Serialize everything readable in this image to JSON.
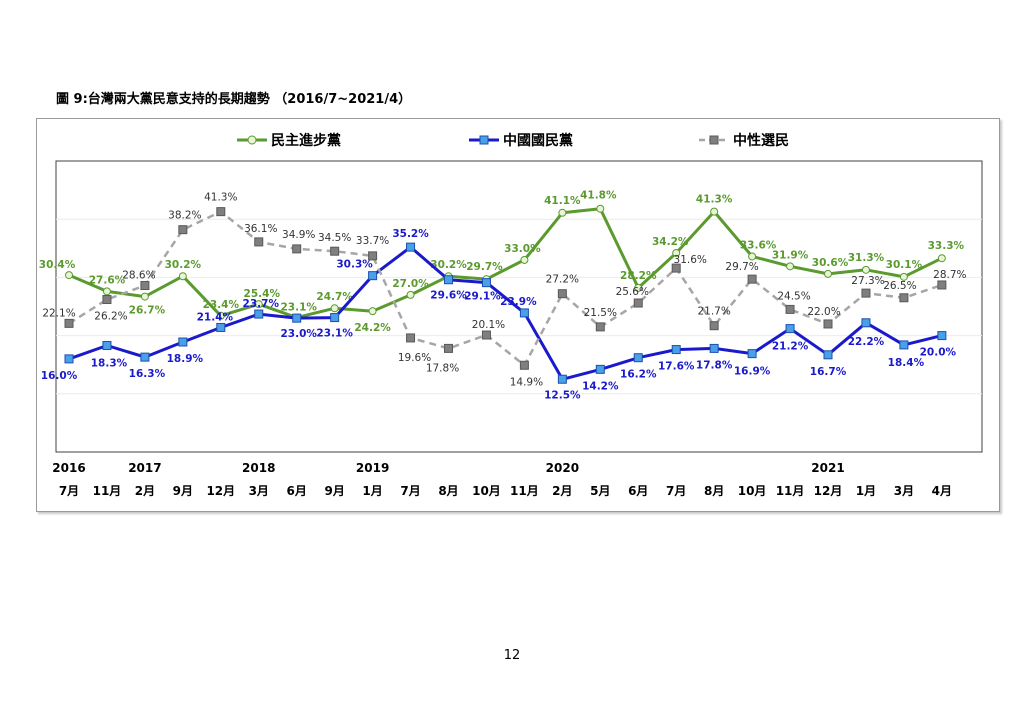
{
  "figure_title": "圖 9:台灣兩大黨民意支持的長期趨勢 （2016/7~2021/4）",
  "page_number": "12",
  "chart_data": {
    "type": "line",
    "title": "",
    "xlabel": "",
    "ylabel": "",
    "grid": true,
    "legend_position": "top",
    "ylim": [
      0,
      50
    ],
    "year_labels": [
      "2016",
      "2017",
      "2018",
      "2019",
      "2020",
      "2021"
    ],
    "year_label_category_index": [
      0,
      2,
      5,
      8,
      13,
      20
    ],
    "categories": [
      "7月",
      "11月",
      "2月",
      "9月",
      "12月",
      "3月",
      "6月",
      "9月",
      "1月",
      "7月",
      "8月",
      "10月",
      "11月",
      "2月",
      "5月",
      "6月",
      "7月",
      "8月",
      "10月",
      "11月",
      "12月",
      "1月",
      "3月",
      "4月"
    ],
    "series": [
      {
        "name": "民主進步黨",
        "color": "#5b9a2e",
        "marker": "circle",
        "marker_fill": "#e8f5d8",
        "dashed": false,
        "label_color": "#5b9a2e",
        "values": [
          30.4,
          27.6,
          26.7,
          30.2,
          23.4,
          25.4,
          23.1,
          24.7,
          24.2,
          27.0,
          30.2,
          29.7,
          33.0,
          41.1,
          41.8,
          28.2,
          34.2,
          41.3,
          33.6,
          31.9,
          30.6,
          31.3,
          30.1,
          33.3
        ],
        "labels": [
          "30.4%",
          "27.6%",
          "26.7%",
          "30.2%",
          "23.4%",
          "25.4%",
          "23.1%",
          "24.7%",
          "24.2%",
          "27.0%",
          "30.2%",
          "29.7%",
          "33.0%",
          "41.1%",
          "41.8%",
          "28.2%",
          "34.2%",
          "41.3%",
          "33.6%",
          "31.9%",
          "30.6%",
          "31.3%",
          "30.1%",
          "33.3%"
        ]
      },
      {
        "name": "中國國民黨",
        "color": "#1a1acc",
        "marker": "square",
        "marker_fill": "#4aa0e8",
        "dashed": false,
        "label_color": "#1a1acc",
        "values": [
          16.0,
          18.3,
          16.3,
          18.9,
          21.4,
          23.7,
          23.0,
          23.1,
          30.3,
          35.2,
          29.6,
          29.1,
          23.9,
          12.5,
          14.2,
          16.2,
          17.6,
          17.8,
          16.9,
          21.2,
          16.7,
          22.2,
          18.4,
          20.0
        ],
        "labels": [
          "16.0%",
          "18.3%",
          "16.3%",
          "18.9%",
          "21.4%",
          "23.7%",
          "23.0%",
          "23.1%",
          "30.3%",
          "35.2%",
          "29.6%",
          "29.1%",
          "23.9%",
          "12.5%",
          "14.2%",
          "16.2%",
          "17.6%",
          "17.8%",
          "16.9%",
          "21.2%",
          "16.7%",
          "22.2%",
          "18.4%",
          "20.0%"
        ]
      },
      {
        "name": "中性選民",
        "color": "#a6a6a6",
        "marker": "square",
        "marker_fill": "#7f7f7f",
        "dashed": true,
        "label_color": "#333333",
        "values": [
          22.1,
          26.2,
          28.6,
          38.2,
          41.3,
          36.1,
          34.9,
          34.5,
          33.7,
          19.6,
          17.8,
          20.1,
          14.9,
          27.2,
          21.5,
          25.6,
          31.6,
          21.7,
          29.7,
          24.5,
          22.0,
          27.3,
          26.5,
          28.7
        ],
        "labels": [
          "22.1%",
          "26.2%",
          "28.6%",
          "38.2%",
          "41.3%",
          "36.1%",
          "34.9%",
          "34.5%",
          "33.7%",
          "19.6%",
          "17.8%",
          "20.1%",
          "14.9%",
          "27.2%",
          "21.5%",
          "25.6%",
          "31.6%",
          "21.7%",
          "29.7%",
          "24.5%",
          "22.0%",
          "27.3%",
          "26.5%",
          "28.7%"
        ]
      }
    ]
  }
}
